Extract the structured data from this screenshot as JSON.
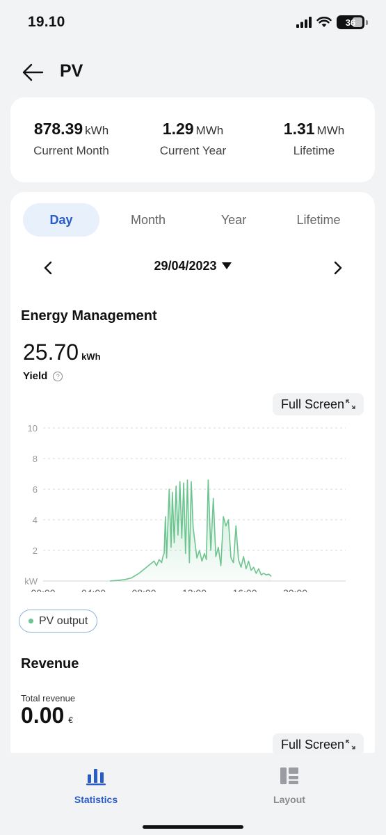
{
  "status": {
    "time": "19.10",
    "battery": "36"
  },
  "header": {
    "title": "PV"
  },
  "summary": [
    {
      "value": "878.39",
      "unit": "kWh",
      "label": "Current Month"
    },
    {
      "value": "1.29",
      "unit": "MWh",
      "label": "Current Year"
    },
    {
      "value": "1.31",
      "unit": "MWh",
      "label": "Lifetime"
    }
  ],
  "tabs": [
    "Day",
    "Month",
    "Year",
    "Lifetime"
  ],
  "active_tab": "Day",
  "date": "29/04/2023",
  "energy": {
    "title": "Energy Management",
    "value": "25.70",
    "unit": "kWh",
    "label": "Yield",
    "help_icon": "?",
    "full_screen": "Full Screen"
  },
  "legend": {
    "pv_output": "PV output"
  },
  "revenue": {
    "title": "Revenue",
    "total_label": "Total revenue",
    "value": "0.00",
    "unit": "€",
    "full_screen": "Full Screen"
  },
  "nav": {
    "statistics": "Statistics",
    "layout": "Layout"
  },
  "colors": {
    "accent": "#2a5cc8",
    "series": "#6cc48f",
    "background": "#f2f3f5"
  },
  "chart_data": {
    "type": "area",
    "title": "",
    "xlabel": "",
    "ylabel": "kW",
    "ylim": [
      0,
      10
    ],
    "xlim_hours": [
      0,
      24
    ],
    "yticks": [
      2,
      4,
      6,
      8,
      10
    ],
    "xticks": [
      "00:00",
      "04:00",
      "08:00",
      "12:00",
      "16:00",
      "20:00"
    ],
    "grid": true,
    "series": [
      {
        "name": "PV output",
        "x": [
          5.3,
          6.0,
          6.5,
          7.0,
          7.3,
          7.6,
          7.9,
          8.2,
          8.5,
          8.8,
          9.0,
          9.2,
          9.4,
          9.5,
          9.6,
          9.7,
          9.8,
          10.0,
          10.15,
          10.25,
          10.4,
          10.55,
          10.7,
          10.85,
          11.0,
          11.15,
          11.3,
          11.45,
          11.6,
          11.75,
          11.9,
          12.05,
          12.2,
          12.4,
          12.6,
          12.8,
          12.95,
          13.1,
          13.3,
          13.5,
          13.7,
          13.9,
          14.1,
          14.3,
          14.5,
          14.7,
          14.9,
          15.1,
          15.3,
          15.5,
          15.7,
          15.9,
          16.1,
          16.3,
          16.5,
          16.7,
          16.9,
          17.1,
          17.3,
          17.5,
          17.7,
          17.9,
          18.1
        ],
        "values": [
          0.0,
          0.05,
          0.1,
          0.2,
          0.35,
          0.5,
          0.7,
          0.9,
          1.1,
          1.3,
          1.0,
          1.4,
          1.2,
          1.6,
          1.8,
          4.2,
          1.5,
          6.0,
          2.2,
          5.8,
          2.5,
          6.2,
          3.0,
          6.5,
          2.8,
          6.4,
          1.8,
          6.6,
          1.2,
          6.5,
          3.5,
          2.5,
          1.5,
          2.0,
          1.3,
          1.8,
          1.4,
          6.6,
          2.0,
          5.4,
          1.6,
          2.2,
          1.0,
          4.2,
          3.6,
          4.0,
          1.5,
          1.2,
          3.6,
          1.4,
          0.9,
          1.6,
          0.8,
          1.3,
          0.7,
          0.9,
          0.5,
          0.8,
          0.4,
          0.5,
          0.4,
          0.45,
          0.3
        ]
      }
    ]
  }
}
